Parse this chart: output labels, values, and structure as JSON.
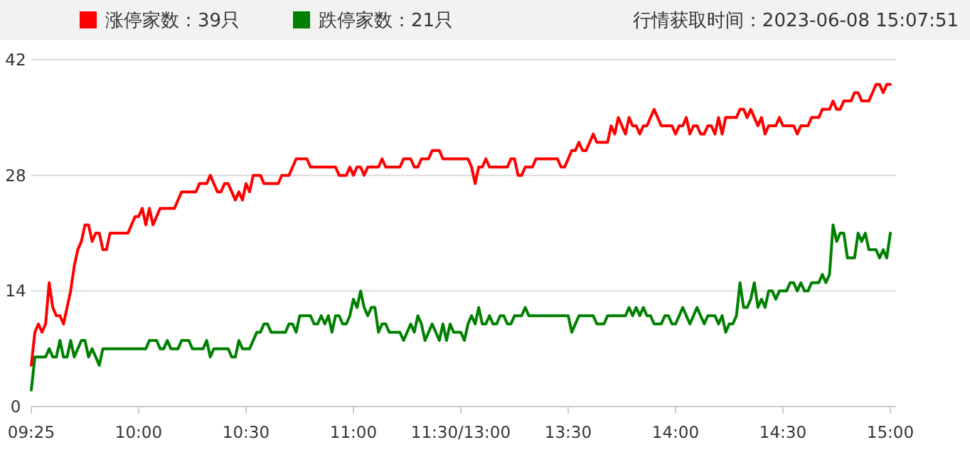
{
  "chart_data": {
    "type": "line",
    "legend": "top left",
    "grid": "y",
    "marker": "none",
    "line_style": "solid",
    "annotations": [
      "行情获取时间：2023-06-08 15:07:51"
    ],
    "categories": [
      "09:25",
      null,
      null,
      null,
      null,
      null,
      null,
      null,
      null,
      null,
      null,
      null,
      null,
      null,
      null,
      null,
      null,
      null,
      null,
      null,
      null,
      null,
      null,
      null,
      null,
      null,
      null,
      null,
      null,
      null,
      "10:00",
      null,
      null,
      null,
      null,
      null,
      null,
      null,
      null,
      null,
      null,
      null,
      null,
      null,
      null,
      null,
      null,
      null,
      null,
      null,
      null,
      null,
      null,
      null,
      null,
      null,
      null,
      null,
      null,
      null,
      "10:30",
      null,
      null,
      null,
      null,
      null,
      null,
      null,
      null,
      null,
      null,
      null,
      null,
      null,
      null,
      null,
      null,
      null,
      null,
      null,
      null,
      null,
      null,
      null,
      null,
      null,
      null,
      null,
      null,
      null,
      "11:00",
      null,
      null,
      null,
      null,
      null,
      null,
      null,
      null,
      null,
      null,
      null,
      null,
      null,
      null,
      null,
      null,
      null,
      null,
      null,
      null,
      null,
      null,
      null,
      null,
      null,
      null,
      null,
      null,
      null,
      "11:30/13:00",
      null,
      null,
      null,
      null,
      null,
      null,
      null,
      null,
      null,
      null,
      null,
      null,
      null,
      null,
      null,
      null,
      null,
      null,
      null,
      null,
      null,
      null,
      null,
      null,
      null,
      null,
      null,
      null,
      null,
      "13:30",
      null,
      null,
      null,
      null,
      null,
      null,
      null,
      null,
      null,
      null,
      null,
      null,
      null,
      null,
      null,
      null,
      null,
      null,
      null,
      null,
      null,
      null,
      null,
      null,
      null,
      null,
      null,
      null,
      null,
      "14:00",
      null,
      null,
      null,
      null,
      null,
      null,
      null,
      null,
      null,
      null,
      null,
      null,
      null,
      null,
      null,
      null,
      null,
      null,
      null,
      null,
      null,
      null,
      null,
      null,
      null,
      null,
      null,
      null,
      null,
      "14:30",
      null,
      null,
      null,
      null,
      null,
      null,
      null,
      null,
      null,
      null,
      null,
      null,
      null,
      null,
      null,
      null,
      null,
      null,
      null,
      null,
      null,
      null,
      null,
      null,
      null,
      null,
      null,
      null,
      null,
      "15:00"
    ],
    "ylim": [
      0,
      42
    ],
    "yticks": [
      0,
      14,
      28,
      42
    ],
    "series": [
      {
        "name": "涨停家数：39只",
        "color": "#ff0000",
        "values": [
          5,
          9,
          10,
          9,
          10,
          15,
          12,
          11,
          11,
          10,
          12,
          14,
          17,
          19,
          20,
          22,
          22,
          20,
          21,
          21,
          19,
          19,
          21,
          21,
          21,
          21,
          21,
          21,
          22,
          23,
          23,
          24,
          22,
          24,
          22,
          23,
          24,
          24,
          24,
          24,
          24,
          25,
          26,
          26,
          26,
          26,
          26,
          27,
          27,
          27,
          28,
          27,
          26,
          26,
          27,
          27,
          26,
          25,
          26,
          25,
          27,
          26,
          28,
          28,
          28,
          27,
          27,
          27,
          27,
          27,
          28,
          28,
          28,
          29,
          30,
          30,
          30,
          30,
          29,
          29,
          29,
          29,
          29,
          29,
          29,
          29,
          28,
          28,
          28,
          29,
          28,
          29,
          29,
          28,
          29,
          29,
          29,
          29,
          30,
          29,
          29,
          29,
          29,
          29,
          30,
          30,
          30,
          29,
          29,
          30,
          30,
          30,
          31,
          31,
          31,
          30,
          30,
          30,
          30,
          30,
          30,
          30,
          30,
          29,
          27,
          29,
          29,
          30,
          29,
          29,
          29,
          29,
          29,
          29,
          30,
          30,
          28,
          28,
          29,
          29,
          29,
          30,
          30,
          30,
          30,
          30,
          30,
          30,
          29,
          29,
          30,
          31,
          31,
          32,
          31,
          31,
          32,
          33,
          32,
          32,
          32,
          32,
          34,
          33,
          35,
          34,
          33,
          35,
          34,
          34,
          33,
          34,
          34,
          35,
          36,
          35,
          34,
          34,
          34,
          34,
          33,
          34,
          34,
          35,
          33,
          34,
          34,
          33,
          33,
          34,
          34,
          33,
          35,
          33,
          35,
          35,
          35,
          35,
          36,
          36,
          35,
          36,
          35,
          34,
          35,
          33,
          34,
          34,
          34,
          35,
          34,
          34,
          34,
          34,
          33,
          34,
          34,
          34,
          35,
          35,
          35,
          36,
          36,
          36,
          37,
          36,
          36,
          37,
          37,
          37,
          38,
          38,
          37,
          37,
          37,
          38,
          39,
          39,
          38,
          39,
          39
        ]
      },
      {
        "name": "跌停家数：21只",
        "color": "#008000",
        "values": [
          2,
          6,
          6,
          6,
          6,
          7,
          6,
          6,
          8,
          6,
          6,
          8,
          6,
          7,
          8,
          8,
          6,
          7,
          6,
          5,
          7,
          7,
          7,
          7,
          7,
          7,
          7,
          7,
          7,
          7,
          7,
          7,
          7,
          8,
          8,
          8,
          7,
          7,
          8,
          7,
          7,
          7,
          8,
          8,
          8,
          7,
          7,
          7,
          7,
          8,
          6,
          7,
          7,
          7,
          7,
          7,
          6,
          6,
          8,
          7,
          7,
          7,
          8,
          9,
          9,
          10,
          10,
          9,
          9,
          9,
          9,
          9,
          10,
          10,
          9,
          11,
          11,
          11,
          11,
          10,
          10,
          11,
          10,
          11,
          9,
          11,
          11,
          10,
          10,
          11,
          13,
          12,
          14,
          12,
          11,
          12,
          12,
          9,
          10,
          10,
          9,
          9,
          9,
          9,
          8,
          9,
          10,
          9,
          11,
          10,
          8,
          9,
          10,
          9,
          8,
          10,
          8,
          10,
          9,
          9,
          9,
          8,
          10,
          11,
          10,
          12,
          10,
          10,
          11,
          10,
          10,
          11,
          11,
          10,
          10,
          11,
          11,
          11,
          12,
          11,
          11,
          11,
          11,
          11,
          11,
          11,
          11,
          11,
          11,
          11,
          11,
          9,
          10,
          11,
          11,
          11,
          11,
          11,
          10,
          10,
          10,
          11,
          11,
          11,
          11,
          11,
          11,
          12,
          11,
          12,
          11,
          12,
          11,
          11,
          10,
          10,
          10,
          11,
          11,
          10,
          10,
          11,
          12,
          11,
          10,
          11,
          12,
          11,
          10,
          11,
          11,
          11,
          10,
          11,
          9,
          10,
          10,
          11,
          15,
          12,
          12,
          13,
          15,
          12,
          13,
          12,
          14,
          14,
          13,
          14,
          14,
          14,
          15,
          15,
          14,
          15,
          14,
          14,
          15,
          15,
          15,
          16,
          15,
          16,
          22,
          20,
          21,
          21,
          18,
          18,
          18,
          21,
          20,
          21,
          19,
          19,
          19,
          18,
          19,
          18,
          21
        ]
      }
    ]
  }
}
